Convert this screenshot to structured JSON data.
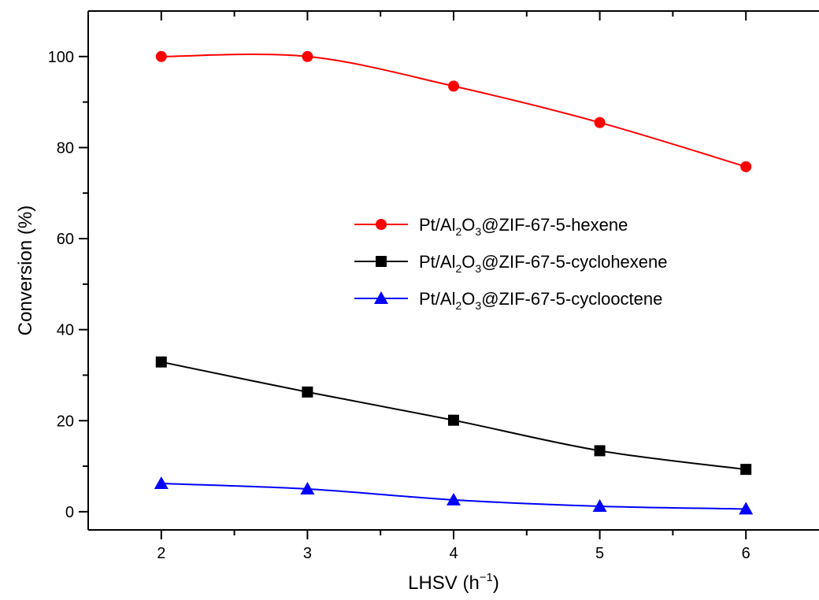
{
  "chart_data": {
    "type": "line",
    "xlabel": {
      "base": "LHSV (h",
      "sup": "−1",
      "tail": ")"
    },
    "ylabel": "Conversion (%)",
    "xlim": [
      1.5,
      6.5
    ],
    "ylim": [
      -4,
      110
    ],
    "x": [
      2,
      3,
      4,
      5,
      6
    ],
    "x_ticks": [
      2,
      3,
      4,
      5,
      6
    ],
    "x_minor_ticks": [
      2.5,
      3.5,
      4.5,
      5.5
    ],
    "y_ticks": [
      0,
      20,
      40,
      60,
      80,
      100
    ],
    "y_minor_ticks": [
      10,
      30,
      50,
      70,
      90
    ],
    "grid": false,
    "legend_position": "center-right",
    "series": [
      {
        "name": "Pt/Al2O3@ZIF-67-5-hexene",
        "label_parts": [
          "Pt/Al",
          "2",
          "O",
          "3",
          "@ZIF-67-5-hexene"
        ],
        "color": "#ff0000",
        "marker": "circle",
        "values": [
          100,
          100,
          93.5,
          85.5,
          75.8
        ]
      },
      {
        "name": "Pt/Al2O3@ZIF-67-5-cyclohexene",
        "label_parts": [
          "Pt/Al",
          "2",
          "O",
          "3",
          "@ZIF-67-5-cyclohexene"
        ],
        "color": "#000000",
        "marker": "square",
        "values": [
          32.9,
          26.3,
          20.1,
          13.4,
          9.3
        ]
      },
      {
        "name": "Pt/Al2O3@ZIF-67-5-cyclooctene",
        "label_parts": [
          "Pt/Al",
          "2",
          "O",
          "3",
          "@ZIF-67-5-cyclooctene"
        ],
        "color": "#0000ff",
        "marker": "triangle",
        "values": [
          6.2,
          5.0,
          2.6,
          1.2,
          0.6
        ]
      }
    ]
  }
}
